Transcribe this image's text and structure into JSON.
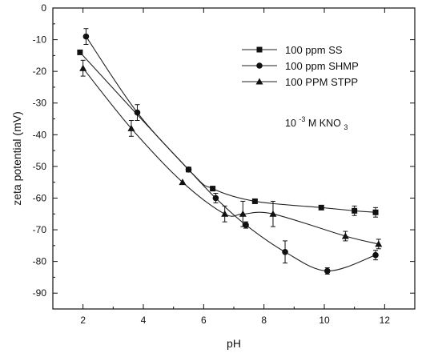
{
  "chart_data": {
    "type": "scatter",
    "xlabel": "pH",
    "ylabel": "zeta potential (mV)",
    "xlim": [
      1,
      13
    ],
    "ylim": [
      -95,
      0
    ],
    "xticks": [
      "2",
      "4",
      "6",
      "8",
      "10",
      "12"
    ],
    "yticks": [
      "0",
      "-10",
      "-20",
      "-30",
      "-40",
      "-50",
      "-60",
      "-70",
      "-80",
      "-90"
    ],
    "grid": false,
    "legend_position": "top-right",
    "annotation": {
      "main": "10",
      "sup": "-3",
      "mid": " M KNO",
      "sub": "3"
    },
    "series": [
      {
        "name": "100 ppm SS",
        "marker": "square",
        "x": [
          1.9,
          5.5,
          6.3,
          7.7,
          9.9,
          11.0,
          11.7
        ],
        "y": [
          -14,
          -51,
          -57,
          -61,
          -63,
          -64,
          -64.5
        ],
        "err": [
          0,
          0,
          0,
          0,
          0,
          1.5,
          1.5
        ]
      },
      {
        "name": "100 ppm SHMP",
        "marker": "circle",
        "x": [
          2.1,
          3.8,
          5.5,
          6.4,
          7.4,
          8.7,
          10.1,
          11.7
        ],
        "y": [
          -9,
          -33,
          -51,
          -60,
          -68.5,
          -77,
          -83,
          -78
        ],
        "err": [
          2.5,
          2.5,
          0,
          1.5,
          1,
          3.5,
          1,
          1.5
        ]
      },
      {
        "name": "100 PPM STPP",
        "marker": "triangle",
        "x": [
          2.0,
          3.6,
          5.3,
          6.7,
          7.3,
          8.3,
          10.7,
          11.8
        ],
        "y": [
          -19,
          -38,
          -55,
          -65,
          -65,
          -65,
          -72,
          -74.5
        ],
        "err": [
          2.5,
          2.5,
          0,
          2.5,
          4,
          4,
          1.5,
          1.5
        ]
      }
    ]
  }
}
